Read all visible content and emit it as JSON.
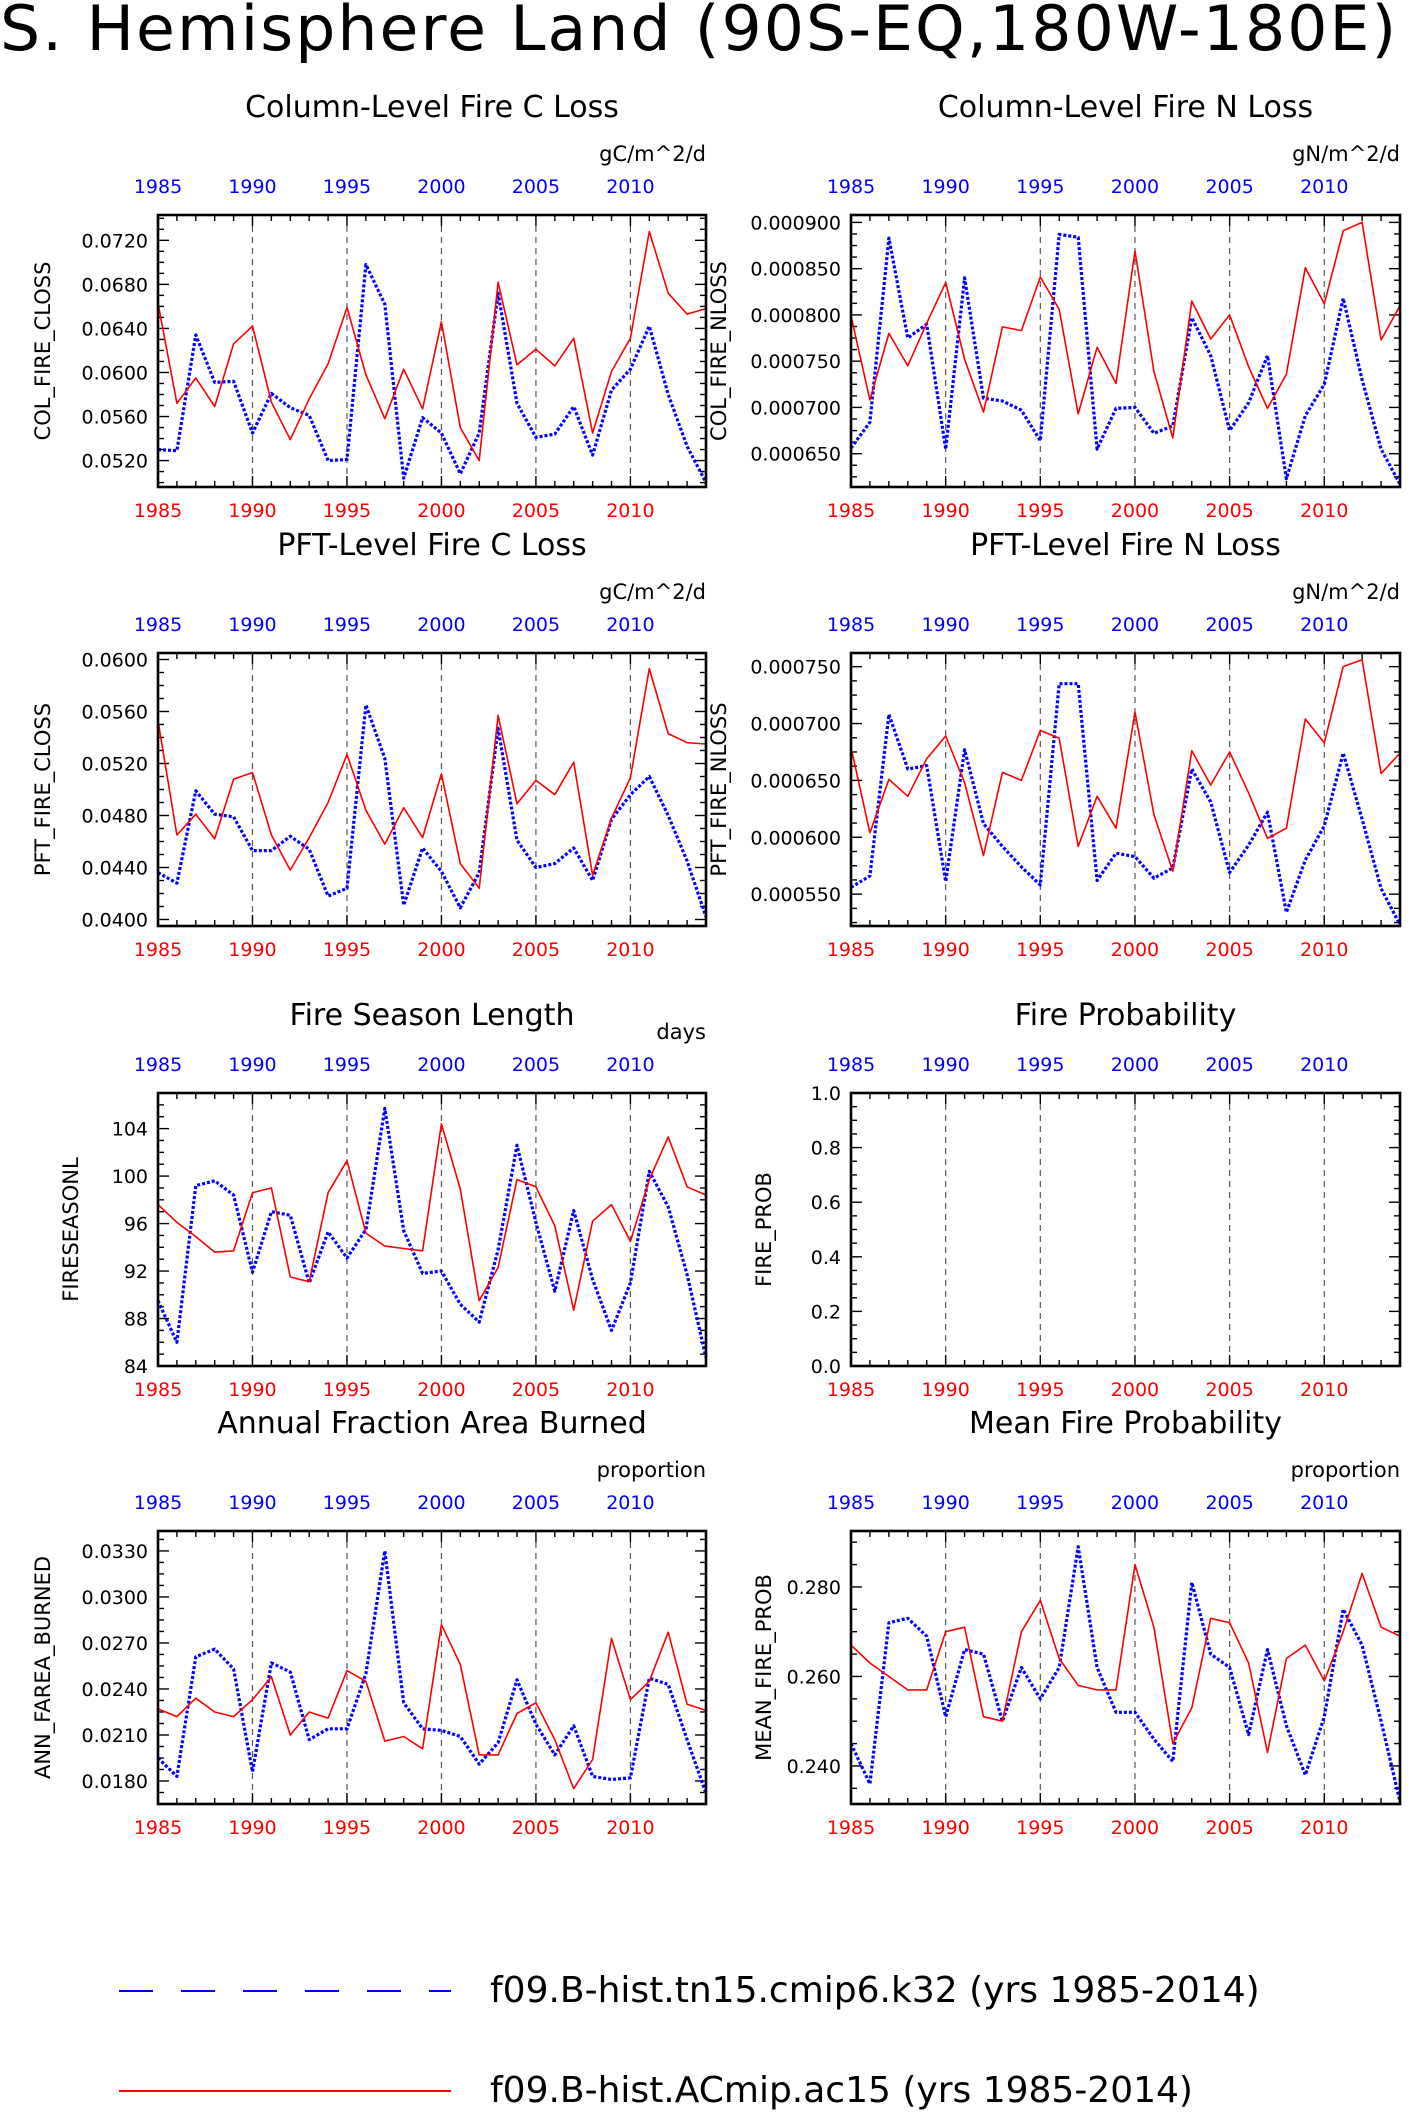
{
  "title": "S. Hemisphere Land (90S-EQ,180W-180E)",
  "series_styles": [
    {
      "color": "#0000ff",
      "dash": "dotted"
    },
    {
      "color": "#ff0000",
      "dash": "solid"
    }
  ],
  "legend": [
    "f09.B-hist.tn15.cmip6.k32 (yrs 1985-2014)",
    "f09.B-hist.ACmip.ac15 (yrs 1985-2014)"
  ],
  "chart_data": [
    {
      "type": "line",
      "title": "Column-Level Fire C Loss",
      "units": "gC/m^2/d",
      "ylabel": "COL_FIRE_CLOSS",
      "xlim": [
        1985,
        2014
      ],
      "ylim": [
        0.0496,
        0.0743
      ],
      "yticks": [
        "0.0520",
        "0.0560",
        "0.0600",
        "0.0640",
        "0.0680",
        "0.0720"
      ],
      "xticks": [
        "1985",
        "1990",
        "1995",
        "2000",
        "2005",
        "2010"
      ],
      "x": [
        1985,
        1986,
        1987,
        1988,
        1989,
        1990,
        1991,
        1992,
        1993,
        1994,
        1995,
        1996,
        1997,
        1998,
        1999,
        2000,
        2001,
        2002,
        2003,
        2004,
        2005,
        2006,
        2007,
        2008,
        2009,
        2010,
        2011,
        2012,
        2013,
        2014
      ],
      "series": [
        {
          "values": [
            0.053,
            0.0529,
            0.0634,
            0.0591,
            0.0592,
            0.0545,
            0.0581,
            0.0568,
            0.0561,
            0.052,
            0.0521,
            0.0698,
            0.0662,
            0.0504,
            0.0559,
            0.0545,
            0.0508,
            0.0545,
            0.0672,
            0.0572,
            0.0541,
            0.0544,
            0.0569,
            0.0525,
            0.0584,
            0.0603,
            0.0642,
            0.058,
            0.0533,
            0.05
          ]
        },
        {
          "values": [
            0.0663,
            0.0572,
            0.0595,
            0.0569,
            0.0626,
            0.0642,
            0.0573,
            0.0539,
            0.0576,
            0.0608,
            0.0659,
            0.0598,
            0.0558,
            0.0603,
            0.0567,
            0.0646,
            0.055,
            0.052,
            0.0682,
            0.0607,
            0.0621,
            0.0606,
            0.0631,
            0.0545,
            0.0601,
            0.0631,
            0.0728,
            0.0672,
            0.0653,
            0.0658
          ]
        }
      ]
    },
    {
      "type": "line",
      "title": "Column-Level Fire N Loss",
      "units": "gN/m^2/d",
      "ylabel": "COL_FIRE_NLOSS",
      "xlim": [
        1985,
        2014
      ],
      "ylim": [
        0.000614,
        0.000908
      ],
      "yticks": [
        "0.000650",
        "0.000700",
        "0.000750",
        "0.000800",
        "0.000850",
        "0.000900"
      ],
      "xticks": [
        "1985",
        "1990",
        "1995",
        "2000",
        "2005",
        "2010"
      ],
      "x": [
        1985,
        1986,
        1987,
        1988,
        1989,
        1990,
        1991,
        1992,
        1993,
        1994,
        1995,
        1996,
        1997,
        1998,
        1999,
        2000,
        2001,
        2002,
        2003,
        2004,
        2005,
        2006,
        2007,
        2008,
        2009,
        2010,
        2011,
        2012,
        2013,
        2014
      ],
      "series": [
        {
          "values": [
            0.000656,
            0.000684,
            0.000883,
            0.000775,
            0.00079,
            0.000655,
            0.00084,
            0.00071,
            0.000707,
            0.000697,
            0.000664,
            0.000887,
            0.000884,
            0.000655,
            0.000699,
            0.0007,
            0.000672,
            0.00068,
            0.000797,
            0.000756,
            0.000675,
            0.000705,
            0.000756,
            0.000623,
            0.000691,
            0.000725,
            0.000818,
            0.00073,
            0.000655,
            0.000617
          ]
        },
        {
          "values": [
            0.000799,
            0.000708,
            0.00078,
            0.000745,
            0.000791,
            0.000835,
            0.000752,
            0.000695,
            0.000787,
            0.000783,
            0.000841,
            0.000806,
            0.000693,
            0.000765,
            0.000726,
            0.000869,
            0.000739,
            0.000667,
            0.000815,
            0.000774,
            0.0008,
            0.000744,
            0.000699,
            0.000736,
            0.000851,
            0.000812,
            0.000891,
            0.0009,
            0.000773,
            0.00081
          ]
        }
      ]
    },
    {
      "type": "line",
      "title": "PFT-Level Fire C Loss",
      "units": "gC/m^2/d",
      "ylabel": "PFT_FIRE_CLOSS",
      "xlim": [
        1985,
        2014
      ],
      "ylim": [
        0.0395,
        0.0605
      ],
      "yticks": [
        "0.0400",
        "0.0440",
        "0.0480",
        "0.0520",
        "0.0560",
        "0.0600"
      ],
      "xticks": [
        "1985",
        "1990",
        "1995",
        "2000",
        "2005",
        "2010"
      ],
      "x": [
        1985,
        1986,
        1987,
        1988,
        1989,
        1990,
        1991,
        1992,
        1993,
        1994,
        1995,
        1996,
        1997,
        1998,
        1999,
        2000,
        2001,
        2002,
        2003,
        2004,
        2005,
        2006,
        2007,
        2008,
        2009,
        2010,
        2011,
        2012,
        2013,
        2014
      ],
      "series": [
        {
          "values": [
            0.0436,
            0.0428,
            0.0499,
            0.0481,
            0.0479,
            0.0453,
            0.0453,
            0.0464,
            0.0454,
            0.0418,
            0.0424,
            0.0565,
            0.0524,
            0.0411,
            0.0455,
            0.0437,
            0.0409,
            0.0436,
            0.0547,
            0.0461,
            0.044,
            0.0443,
            0.0455,
            0.043,
            0.0477,
            0.0496,
            0.051,
            0.048,
            0.0445,
            0.0402
          ]
        },
        {
          "values": [
            0.0553,
            0.0465,
            0.0481,
            0.0462,
            0.0508,
            0.0513,
            0.0465,
            0.0438,
            0.0463,
            0.049,
            0.0527,
            0.0484,
            0.0458,
            0.0486,
            0.0463,
            0.0512,
            0.0443,
            0.0424,
            0.0557,
            0.0489,
            0.0507,
            0.0496,
            0.0521,
            0.0434,
            0.0478,
            0.0509,
            0.0593,
            0.0543,
            0.0536,
            0.0535
          ]
        }
      ]
    },
    {
      "type": "line",
      "title": "PFT-Level Fire N Loss",
      "units": "gN/m^2/d",
      "ylabel": "PFT_FIRE_NLOSS",
      "xlim": [
        1985,
        2014
      ],
      "ylim": [
        0.000522,
        0.000762
      ],
      "yticks": [
        "0.000550",
        "0.000600",
        "0.000650",
        "0.000700",
        "0.000750"
      ],
      "xticks": [
        "1985",
        "1990",
        "1995",
        "2000",
        "2005",
        "2010"
      ],
      "x": [
        1985,
        1986,
        1987,
        1988,
        1989,
        1990,
        1991,
        1992,
        1993,
        1994,
        1995,
        1996,
        1997,
        1998,
        1999,
        2000,
        2001,
        2002,
        2003,
        2004,
        2005,
        2006,
        2007,
        2008,
        2009,
        2010,
        2011,
        2012,
        2013,
        2014
      ],
      "series": [
        {
          "values": [
            0.000556,
            0.000566,
            0.000708,
            0.00066,
            0.000663,
            0.000561,
            0.000677,
            0.000612,
            0.000592,
            0.000574,
            0.000558,
            0.000735,
            0.000735,
            0.000562,
            0.000586,
            0.000583,
            0.000564,
            0.000573,
            0.00066,
            0.000631,
            0.000569,
            0.000593,
            0.000622,
            0.000534,
            0.00058,
            0.00061,
            0.000674,
            0.000616,
            0.000555,
            0.000523
          ]
        },
        {
          "values": [
            0.000679,
            0.000604,
            0.000651,
            0.000636,
            0.000669,
            0.000689,
            0.000648,
            0.000584,
            0.000657,
            0.00065,
            0.000694,
            0.000687,
            0.000592,
            0.000636,
            0.000608,
            0.00071,
            0.00062,
            0.00057,
            0.000676,
            0.000646,
            0.000675,
            0.000639,
            0.000599,
            0.000608,
            0.000704,
            0.000683,
            0.00075,
            0.000756,
            0.000656,
            0.000674
          ]
        }
      ]
    },
    {
      "type": "line",
      "title": "Fire Season Length",
      "units": "days",
      "ylabel": "FIRESEASONL",
      "xlim": [
        1985,
        2014
      ],
      "ylim": [
        84,
        107
      ],
      "yticks": [
        "84",
        "88",
        "92",
        "96",
        "100",
        "104"
      ],
      "xticks": [
        "1985",
        "1990",
        "1995",
        "2000",
        "2005",
        "2010"
      ],
      "x": [
        1985,
        1986,
        1987,
        1988,
        1989,
        1990,
        1991,
        1992,
        1993,
        1994,
        1995,
        1996,
        1997,
        1998,
        1999,
        2000,
        2001,
        2002,
        2003,
        2004,
        2005,
        2006,
        2007,
        2008,
        2009,
        2010,
        2011,
        2012,
        2013,
        2014
      ],
      "series": [
        {
          "values": [
            89.5,
            86.0,
            99.2,
            99.6,
            98.4,
            91.9,
            97.0,
            96.7,
            91.0,
            95.3,
            93.1,
            95.5,
            105.7,
            95.4,
            91.8,
            92.0,
            89.2,
            87.7,
            93.8,
            102.6,
            96.1,
            90.3,
            97.1,
            91.3,
            87.0,
            91.0,
            100.4,
            97.4,
            91.7,
            84.7
          ]
        },
        {
          "values": [
            97.6,
            96.1,
            94.9,
            93.6,
            93.7,
            98.6,
            99.0,
            91.5,
            91.1,
            98.6,
            101.3,
            95.2,
            94.1,
            93.9,
            93.7,
            104.4,
            98.9,
            89.5,
            92.3,
            99.7,
            99.1,
            95.8,
            88.7,
            96.2,
            97.6,
            94.5,
            99.7,
            103.3,
            99.1,
            98.4
          ]
        }
      ]
    },
    {
      "type": "line",
      "title": "Fire Probability",
      "units": "",
      "ylabel": "FIRE_PROB",
      "xlim": [
        1985,
        2014
      ],
      "ylim": [
        0,
        1
      ],
      "yticks": [
        "0.0",
        "0.2",
        "0.4",
        "0.6",
        "0.8",
        "1.0"
      ],
      "xticks": [
        "1985",
        "1990",
        "1995",
        "2000",
        "2005",
        "2010"
      ],
      "x": [],
      "series": []
    },
    {
      "type": "line",
      "title": "Annual Fraction Area Burned",
      "units": "proportion",
      "ylabel": "ANN_FAREA_BURNED",
      "xlim": [
        1985,
        2014
      ],
      "ylim": [
        0.0165,
        0.0343
      ],
      "yticks": [
        "0.0180",
        "0.0210",
        "0.0240",
        "0.0270",
        "0.0300",
        "0.0330"
      ],
      "xticks": [
        "1985",
        "1990",
        "1995",
        "2000",
        "2005",
        "2010"
      ],
      "x": [
        1985,
        1986,
        1987,
        1988,
        1989,
        1990,
        1991,
        1992,
        1993,
        1994,
        1995,
        1996,
        1997,
        1998,
        1999,
        2000,
        2001,
        2002,
        2003,
        2004,
        2005,
        2006,
        2007,
        2008,
        2009,
        2010,
        2011,
        2012,
        2013,
        2014
      ],
      "series": [
        {
          "values": [
            0.0195,
            0.0183,
            0.0261,
            0.0266,
            0.0253,
            0.0186,
            0.0257,
            0.0251,
            0.0207,
            0.0214,
            0.0214,
            0.025,
            0.033,
            0.0231,
            0.0214,
            0.0213,
            0.0209,
            0.0191,
            0.0205,
            0.0246,
            0.0217,
            0.0197,
            0.0216,
            0.0183,
            0.0181,
            0.0182,
            0.0247,
            0.0243,
            0.0207,
            0.0172
          ]
        },
        {
          "values": [
            0.0227,
            0.0222,
            0.0234,
            0.0225,
            0.0222,
            0.0233,
            0.0248,
            0.021,
            0.0225,
            0.0221,
            0.0252,
            0.0245,
            0.0206,
            0.0209,
            0.0201,
            0.0282,
            0.0256,
            0.0197,
            0.0197,
            0.0224,
            0.0231,
            0.0207,
            0.0175,
            0.0194,
            0.0273,
            0.0233,
            0.0245,
            0.0277,
            0.023,
            0.0226
          ]
        }
      ]
    },
    {
      "type": "line",
      "title": "Mean Fire Probability",
      "units": "proportion",
      "ylabel": "MEAN_FIRE_PROB",
      "xlim": [
        1985,
        2014
      ],
      "ylim": [
        0.2315,
        0.2925
      ],
      "yticks": [
        "0.240",
        "0.260",
        "0.280"
      ],
      "xticks": [
        "1985",
        "1990",
        "1995",
        "2000",
        "2005",
        "2010"
      ],
      "x": [
        1985,
        1986,
        1987,
        1988,
        1989,
        1990,
        1991,
        1992,
        1993,
        1994,
        1995,
        1996,
        1997,
        1998,
        1999,
        2000,
        2001,
        2002,
        2003,
        2004,
        2005,
        2006,
        2007,
        2008,
        2009,
        2010,
        2011,
        2012,
        2013,
        2014
      ],
      "series": [
        {
          "values": [
            0.245,
            0.236,
            0.272,
            0.273,
            0.269,
            0.251,
            0.266,
            0.265,
            0.25,
            0.262,
            0.255,
            0.262,
            0.289,
            0.262,
            0.252,
            0.252,
            0.246,
            0.241,
            0.281,
            0.265,
            0.262,
            0.247,
            0.266,
            0.249,
            0.238,
            0.251,
            0.275,
            0.267,
            0.25,
            0.232
          ]
        },
        {
          "values": [
            0.267,
            0.263,
            0.26,
            0.257,
            0.257,
            0.27,
            0.271,
            0.251,
            0.25,
            0.27,
            0.277,
            0.264,
            0.258,
            0.257,
            0.257,
            0.285,
            0.271,
            0.245,
            0.253,
            0.273,
            0.272,
            0.263,
            0.243,
            0.264,
            0.267,
            0.259,
            0.27,
            0.283,
            0.271,
            0.269
          ]
        }
      ]
    }
  ]
}
